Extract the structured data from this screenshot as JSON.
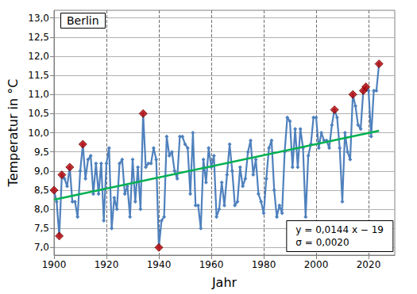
{
  "chart_data": {
    "type": "line",
    "title": "Berlin",
    "x_label": "Jahr",
    "y_label": "Temperatur in °C",
    "annotations": [
      "y = 0,0144 x − 19",
      "σ = 0,0020"
    ],
    "xlim": [
      1900,
      2030
    ],
    "xticks": [
      1900,
      1920,
      1940,
      1960,
      1980,
      2000,
      2020
    ],
    "ylim": [
      6.8,
      13.2
    ],
    "yticks": [
      {
        "value": 7,
        "label": "7,0"
      },
      {
        "value": 7.5,
        "label": "7,5"
      },
      {
        "value": 8,
        "label": "8,0"
      },
      {
        "value": 8.5,
        "label": "8,5"
      },
      {
        "value": 9,
        "label": "9,0"
      },
      {
        "value": 9.5,
        "label": "9,5"
      },
      {
        "value": 10,
        "label": "10,0"
      },
      {
        "value": 10.5,
        "label": "10,5"
      },
      {
        "value": 11,
        "label": "11,0"
      },
      {
        "value": 11.5,
        "label": "11,5"
      },
      {
        "value": 12,
        "label": "12,0"
      },
      {
        "value": 12.5,
        "label": "12,5"
      },
      {
        "value": 13,
        "label": "13,0"
      }
    ],
    "grid": true,
    "series": [
      {
        "type": "line",
        "color": "#4f81bd",
        "marker": "diamond",
        "x": [
          1900,
          1901,
          1902,
          1903,
          1904,
          1905,
          1906,
          1907,
          1908,
          1909,
          1910,
          1911,
          1912,
          1913,
          1914,
          1915,
          1916,
          1917,
          1918,
          1919,
          1920,
          1921,
          1922,
          1923,
          1924,
          1925,
          1926,
          1927,
          1928,
          1929,
          1930,
          1931,
          1932,
          1933,
          1934,
          1935,
          1936,
          1937,
          1938,
          1939,
          1940,
          1941,
          1942,
          1943,
          1944,
          1945,
          1946,
          1947,
          1948,
          1949,
          1950,
          1951,
          1952,
          1953,
          1954,
          1955,
          1956,
          1957,
          1958,
          1959,
          1960,
          1961,
          1962,
          1963,
          1964,
          1965,
          1966,
          1967,
          1968,
          1969,
          1970,
          1971,
          1972,
          1973,
          1974,
          1975,
          1976,
          1977,
          1978,
          1979,
          1980,
          1981,
          1982,
          1983,
          1984,
          1985,
          1986,
          1987,
          1988,
          1989,
          1990,
          1991,
          1992,
          1993,
          1994,
          1995,
          1996,
          1997,
          1998,
          1999,
          2000,
          2001,
          2002,
          2003,
          2004,
          2005,
          2006,
          2007,
          2008,
          2009,
          2010,
          2011,
          2012,
          2013,
          2014,
          2015,
          2016,
          2017,
          2018,
          2019,
          2020,
          2021,
          2022,
          2023,
          2024
        ],
        "values": [
          8.5,
          8.2,
          7.3,
          8.9,
          8.8,
          8.6,
          9.1,
          8.2,
          8.2,
          7.8,
          9.0,
          9.7,
          8.8,
          9.3,
          9.4,
          8.4,
          9.2,
          8.4,
          9.2,
          7.7,
          9.2,
          9.6,
          7.5,
          8.3,
          8.0,
          9.2,
          9.3,
          8.4,
          8.6,
          7.8,
          9.3,
          8.2,
          9.1,
          8.0,
          10.5,
          9.1,
          9.2,
          9.2,
          9.6,
          9.3,
          7.0,
          7.7,
          7.8,
          9.9,
          9.4,
          9.5,
          9.0,
          8.8,
          9.9,
          9.9,
          9.7,
          9.6,
          8.4,
          10.0,
          8.1,
          8.1,
          7.5,
          9.3,
          8.7,
          9.6,
          9.1,
          9.4,
          7.8,
          8.0,
          8.7,
          8.1,
          8.9,
          9.7,
          9.0,
          8.1,
          8.2,
          9.1,
          8.6,
          8.8,
          9.5,
          9.8,
          8.9,
          9.3,
          8.4,
          8.2,
          7.9,
          8.8,
          9.6,
          9.8,
          8.5,
          7.8,
          8.1,
          7.9,
          9.5,
          10.4,
          10.3,
          9.1,
          10.1,
          9.1,
          10.1,
          9.6,
          7.8,
          9.4,
          9.7,
          10.4,
          10.4,
          9.6,
          10.0,
          9.8,
          9.8,
          9.6,
          10.2,
          10.6,
          10.4,
          9.6,
          8.2,
          10.0,
          9.5,
          9.3,
          11.0,
          10.7,
          10.2,
          10.1,
          11.1,
          11.2,
          11.1,
          9.9,
          11.1,
          11.1,
          11.8
        ]
      },
      {
        "type": "scatter",
        "color": "#c00000",
        "marker": "diamond",
        "x": [
          1900,
          1902,
          1903,
          1906,
          1911,
          1934,
          1940,
          2007,
          2014,
          2018,
          2019,
          2024
        ],
        "values": [
          8.5,
          7.3,
          8.9,
          9.1,
          9.7,
          10.5,
          7.0,
          10.6,
          11.0,
          11.1,
          11.2,
          11.8
        ]
      },
      {
        "type": "line",
        "color": "#00b050",
        "marker": "none",
        "x": [
          1900,
          2024
        ],
        "values": [
          8.25,
          10.05
        ]
      }
    ]
  }
}
